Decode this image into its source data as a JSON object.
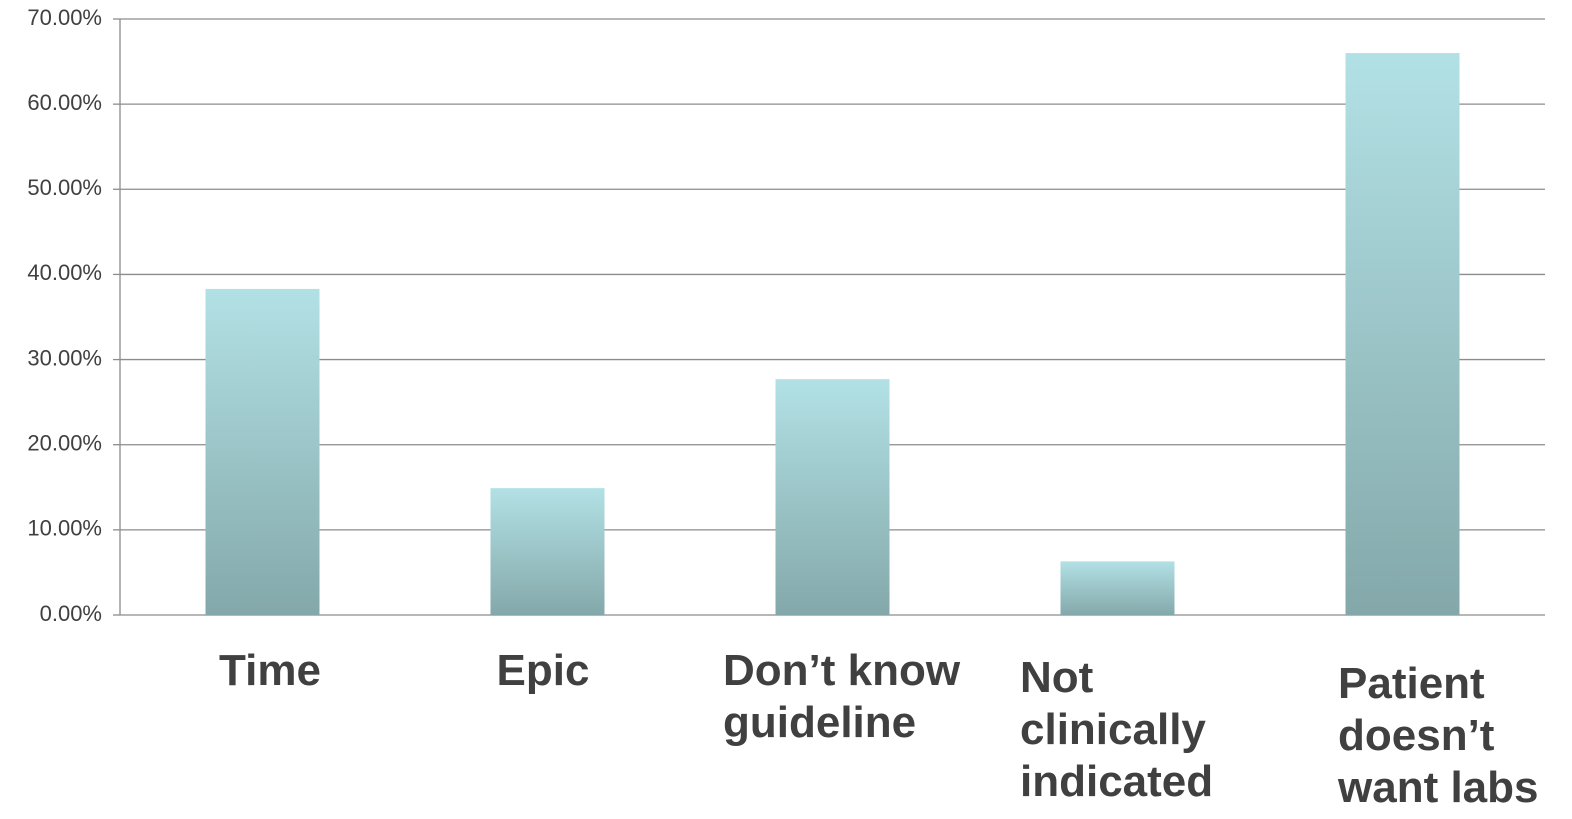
{
  "chart_data": {
    "type": "bar",
    "categories": [
      "Time",
      "Epic",
      "Don’t know guideline",
      "Not clinically indicated",
      "Patient doesn’t want labs"
    ],
    "values": [
      38.3,
      14.9,
      27.7,
      6.3,
      66.0
    ],
    "ylim": [
      0,
      70
    ],
    "yticks": [
      {
        "value": 0,
        "label": "0.00%"
      },
      {
        "value": 10,
        "label": "10.00%"
      },
      {
        "value": 20,
        "label": "20.00%"
      },
      {
        "value": 30,
        "label": "30.00%"
      },
      {
        "value": 40,
        "label": "40.00%"
      },
      {
        "value": 50,
        "label": "50.00%"
      },
      {
        "value": 60,
        "label": "60.00%"
      },
      {
        "value": 70,
        "label": "70.00%"
      }
    ],
    "grid": true
  }
}
